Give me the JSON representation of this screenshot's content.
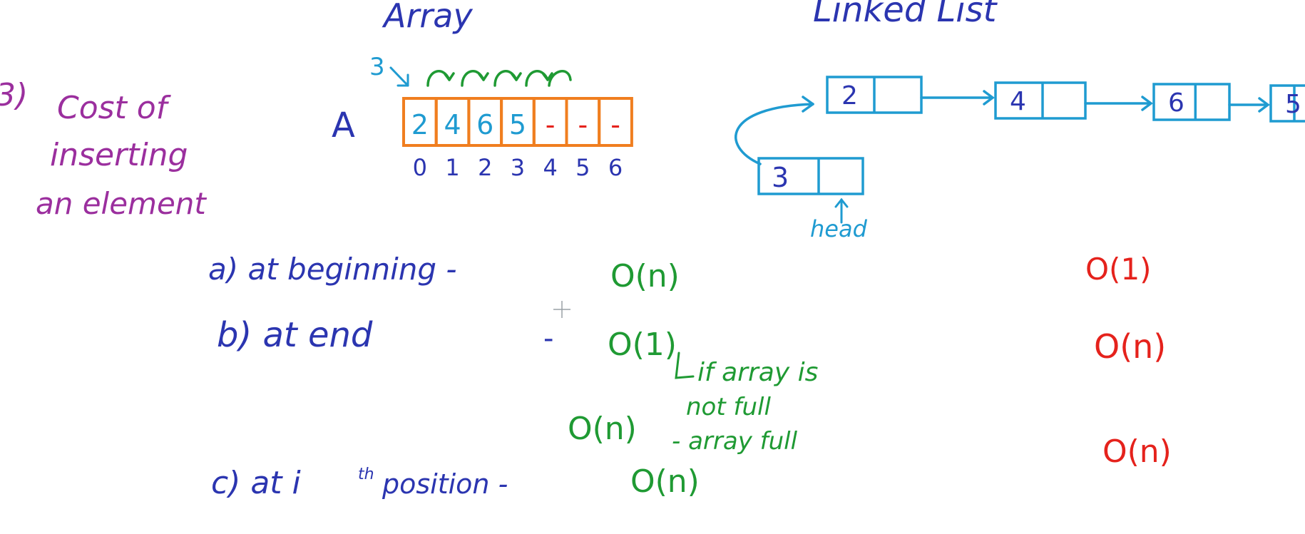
{
  "colors": {
    "blue": "#2b35b0",
    "purple": "#9b2f9e",
    "green": "#1f9a33",
    "red": "#e5221c",
    "cyan": "#1f9bd1",
    "orange": "#f07e1f",
    "teal": "#28a9d8"
  },
  "titles": {
    "array": "Array",
    "linked_list": "Linked List"
  },
  "section": {
    "number": "3)",
    "line1": "Cost of",
    "line2": "inserting",
    "line3": "an element"
  },
  "array": {
    "name": "A",
    "insert_value": "3",
    "cells": [
      "2",
      "4",
      "6",
      "5",
      "-",
      "-",
      "-"
    ],
    "indices": [
      "0",
      "1",
      "2",
      "3",
      "4",
      "5",
      "6"
    ]
  },
  "linked_list": {
    "nodes": [
      "2",
      "4",
      "6",
      "5"
    ],
    "new_node": "3",
    "head_label": "head"
  },
  "rows": [
    {
      "label": "a) at beginning -",
      "array_cost": "O(n)",
      "list_cost": "O(1)"
    },
    {
      "label": "b) at end",
      "dash": "-",
      "array_cost": "O(1)",
      "note1": "if array is",
      "note2": "not full",
      "array_cost_full": "O(n)",
      "note3": "- array full",
      "list_cost": "O(n)"
    },
    {
      "label_c": "c) at i",
      "label_sup": "th",
      "label_rest": "position -",
      "array_cost": "O(n)",
      "list_cost": "O(n)"
    }
  ]
}
